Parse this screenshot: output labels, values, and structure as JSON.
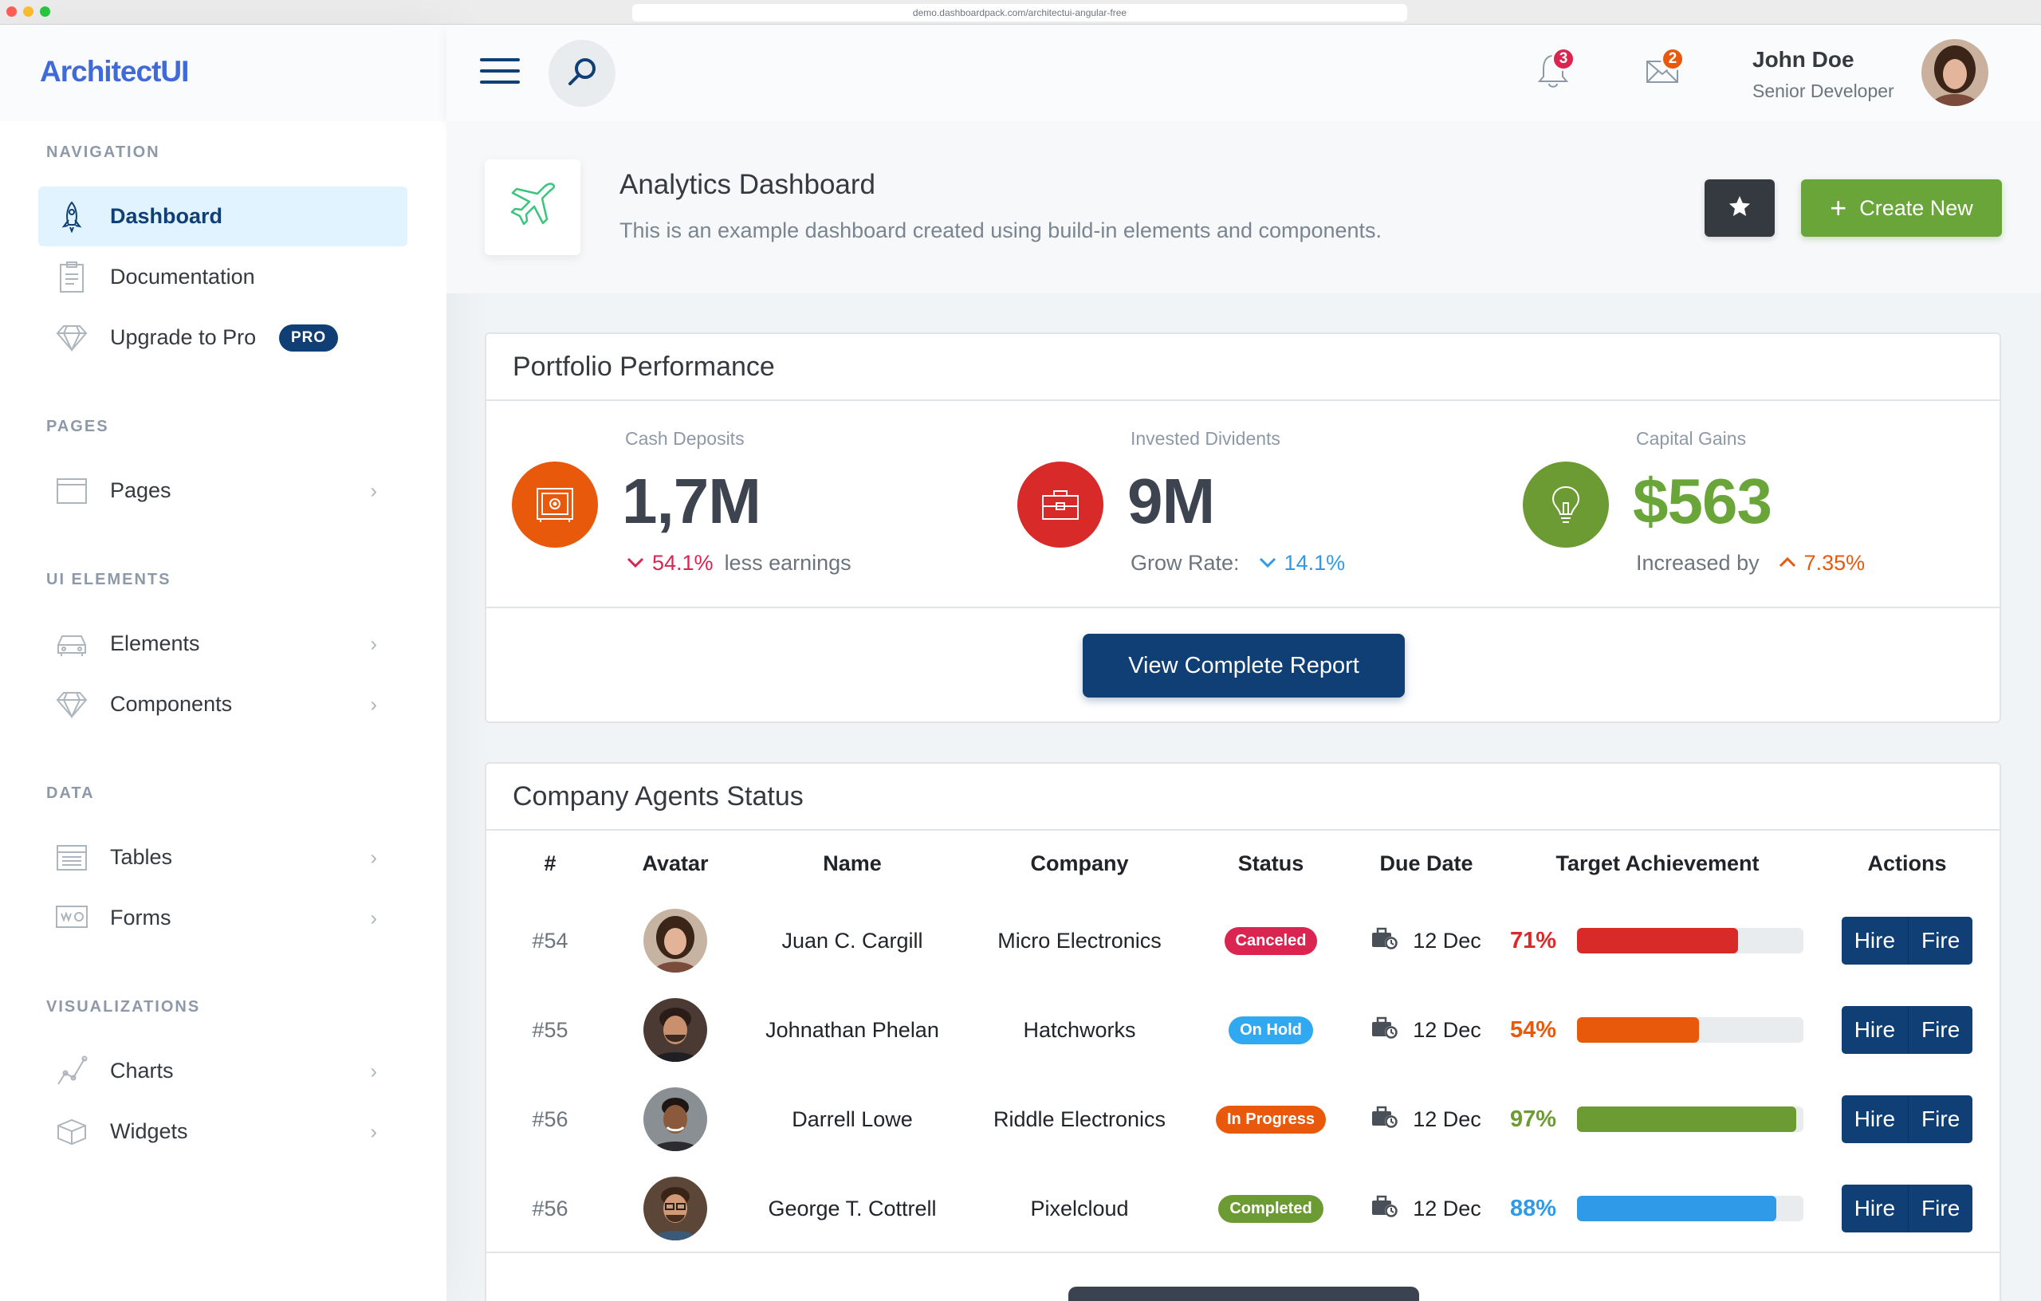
{
  "browser": {
    "url": "demo.dashboardpack.com/architectui-angular-free"
  },
  "sidebar": {
    "logo": "ArchitectUI",
    "sections": [
      {
        "heading": "NAVIGATION",
        "items": [
          {
            "label": "Dashboard",
            "icon": "rocket-icon",
            "active": true
          },
          {
            "label": "Documentation",
            "icon": "document-icon"
          },
          {
            "label": "Upgrade to Pro",
            "icon": "diamond-icon",
            "badge": "PRO"
          }
        ]
      },
      {
        "heading": "PAGES",
        "items": [
          {
            "label": "Pages",
            "icon": "browser-icon"
          }
        ]
      },
      {
        "heading": "UI ELEMENTS",
        "items": [
          {
            "label": "Elements",
            "icon": "car-icon"
          },
          {
            "label": "Components",
            "icon": "diamond-icon"
          }
        ]
      },
      {
        "heading": "DATA",
        "items": [
          {
            "label": "Tables",
            "icon": "table-icon"
          },
          {
            "label": "Forms",
            "icon": "form-icon"
          }
        ]
      },
      {
        "heading": "VISUALIZATIONS",
        "items": [
          {
            "label": "Charts",
            "icon": "graph-icon"
          },
          {
            "label": "Widgets",
            "icon": "box-icon"
          }
        ]
      }
    ]
  },
  "header": {
    "notifications_count": "3",
    "messages_count": "2",
    "user": {
      "name": "John Doe",
      "role": "Senior Developer"
    }
  },
  "page": {
    "title": "Analytics Dashboard",
    "subtitle": "This is an example dashboard created using build-in elements and components.",
    "create_label": "Create New"
  },
  "portfolio": {
    "title": "Portfolio Performance",
    "widgets": [
      {
        "subtitle": "Cash Deposits",
        "value": "1,7M",
        "trend_value": "54.1%",
        "trend_text": "less earnings",
        "trend_dir": "down",
        "color": "#e8590c"
      },
      {
        "subtitle": "Invested Dividents",
        "value": "9M",
        "trend_text": "Grow Rate:",
        "trend_value": "14.1%",
        "trend_dir": "down",
        "color": "#d92550"
      },
      {
        "subtitle": "Capital Gains",
        "value": "$563",
        "trend_text": "Increased by",
        "trend_value": "7.35%",
        "trend_dir": "up",
        "color": "#6aa53a"
      }
    ],
    "report_label": "View Complete Report"
  },
  "agents": {
    "title": "Company Agents Status",
    "columns": [
      "#",
      "Avatar",
      "Name",
      "Company",
      "Status",
      "Due Date",
      "Target Achievement",
      "Actions"
    ],
    "rows": [
      {
        "id": "#54",
        "name": "Juan C. Cargill",
        "company": "Micro Electronics",
        "status": "Canceled",
        "status_color": "#d92550",
        "due": "12 Dec",
        "target": "71%",
        "target_value": 71,
        "target_color": "#d92a2a"
      },
      {
        "id": "#55",
        "name": "Johnathan Phelan",
        "company": "Hatchworks",
        "status": "On Hold",
        "status_color": "#30a9f0",
        "due": "12 Dec",
        "target": "54%",
        "target_value": 54,
        "target_color": "#e8590c"
      },
      {
        "id": "#56",
        "name": "Darrell Lowe",
        "company": "Riddle Electronics",
        "status": "In Progress",
        "status_color": "#e8590c",
        "due": "12 Dec",
        "target": "97%",
        "target_value": 97,
        "target_color": "#6d9b33"
      },
      {
        "id": "#56",
        "name": "George T. Cottrell",
        "company": "Pixelcloud",
        "status": "Completed",
        "status_color": "#6d9b33",
        "due": "12 Dec",
        "target": "88%",
        "target_value": 88,
        "target_color": "#2f9be8"
      }
    ],
    "hire_label": "Hire",
    "fire_label": "Fire"
  }
}
